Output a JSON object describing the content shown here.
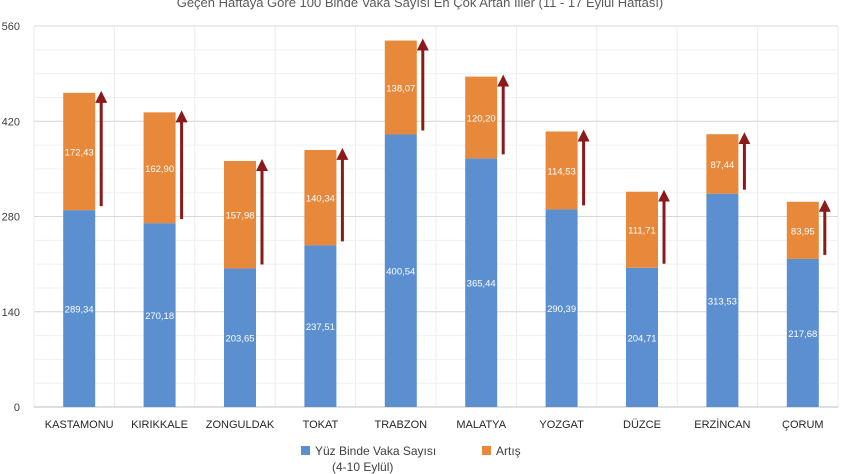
{
  "chart_data": {
    "type": "bar",
    "stacked": true,
    "title": "Geçen Haftaya Göre 100 Binde Vaka Sayısı En Çok Artan İller (11 - 17 Eylül Haftası)",
    "categories": [
      "KASTAMONU",
      "KIRIKKALE",
      "ZONGULDAK",
      "TOKAT",
      "TRABZON",
      "MALATYA",
      "YOZGAT",
      "DÜZCE",
      "ERZİNCAN",
      "ÇORUM"
    ],
    "series": [
      {
        "name": "Yüz Binde Vaka Sayısı",
        "name_line2": "(4-10 Eylül)",
        "color": "#5b8fd0",
        "values": [
          289.34,
          270.18,
          203.65,
          237.51,
          400.54,
          365.44,
          290.39,
          204.71,
          313.53,
          217.68
        ],
        "labels": [
          "289,34",
          "270,18",
          "203,65",
          "237,51",
          "400,54",
          "365,44",
          "290,39",
          "204,71",
          "313,53",
          "217,68"
        ]
      },
      {
        "name": "Artış",
        "color": "#e8883a",
        "values": [
          172.43,
          162.9,
          157.98,
          140.34,
          138.07,
          120.2,
          114.53,
          111.71,
          87.44,
          83.95
        ],
        "labels": [
          "172,43",
          "162,90",
          "157,98",
          "140,34",
          "138,07",
          "120,20",
          "114,53",
          "111,71",
          "87,44",
          "83,95"
        ]
      }
    ],
    "ylim": [
      0,
      560
    ],
    "yticks": [
      "0",
      "140",
      "280",
      "420",
      "560"
    ],
    "ytick_values": [
      0,
      140,
      280,
      420,
      560
    ],
    "grid": true,
    "legend_position": "bottom",
    "arrow_color": "#8b1a1a"
  }
}
